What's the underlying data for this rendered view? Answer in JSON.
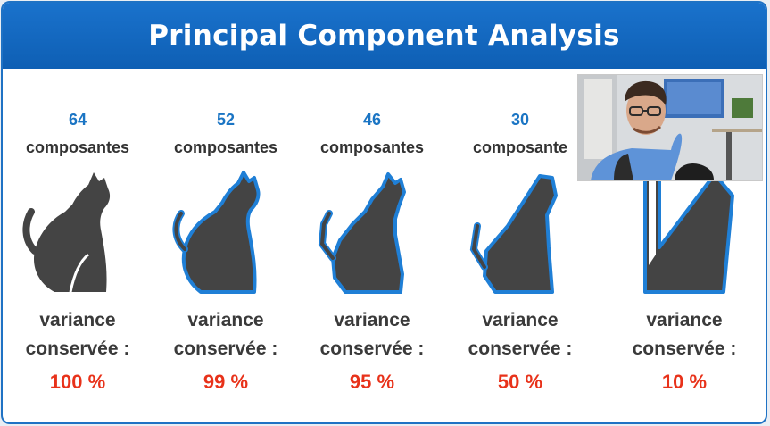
{
  "slide": {
    "title": "Principal Component Analysis"
  },
  "columns": [
    {
      "count": "64",
      "label": "composantes",
      "variance_line1": "variance",
      "variance_line2": "conservée :",
      "percent": "100 %"
    },
    {
      "count": "52",
      "label": "composantes",
      "variance_line1": "variance",
      "variance_line2": "conservée :",
      "percent": "99 %"
    },
    {
      "count": "46",
      "label": "composantes",
      "variance_line1": "variance",
      "variance_line2": "conservée :",
      "percent": "95 %"
    },
    {
      "count": "30",
      "label": "composante",
      "variance_line1": "variance",
      "variance_line2": "conservée :",
      "percent": "50 %"
    },
    {
      "count": "",
      "label": "",
      "variance_line1": "variance",
      "variance_line2": "conservée :",
      "percent": "10 %"
    }
  ],
  "colors": {
    "title_bar": "#1a72cc",
    "count_text": "#1b75c4",
    "percent_text": "#e8321a",
    "cat_fill": "#444444",
    "cat_outline": "#1f7fd6"
  },
  "icons": [
    "cat-silhouette-icon",
    "webcam-presenter"
  ]
}
